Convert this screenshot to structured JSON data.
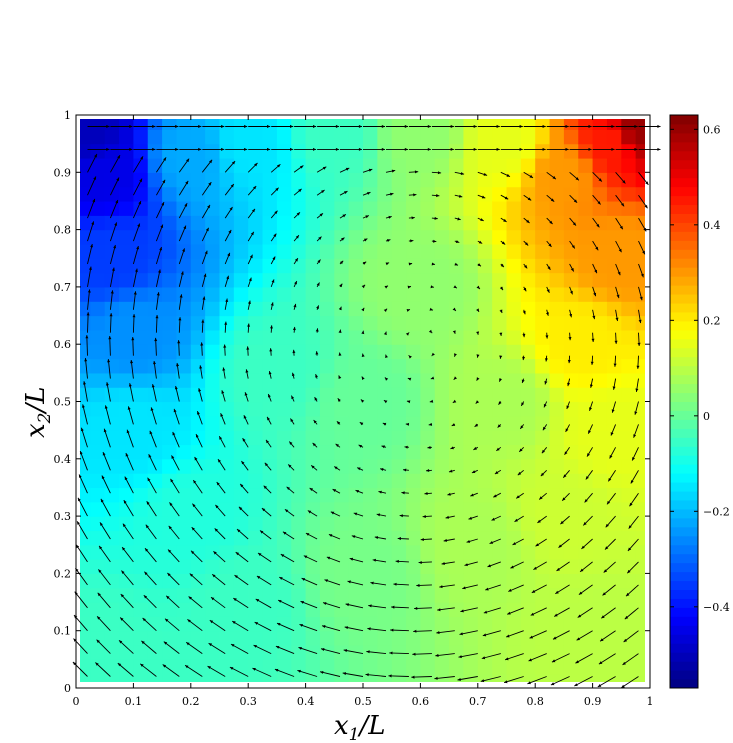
{
  "chart_data": {
    "type": "heatmap",
    "subtype": "contour-with-quiver",
    "title": "",
    "x_axis": {
      "label_base": "x",
      "label_sub": "1",
      "label_tail": "/L",
      "range": [
        0,
        1
      ],
      "ticks": [
        "0",
        "0.1",
        "0.2",
        "0.3",
        "0.4",
        "0.5",
        "0.6",
        "0.7",
        "0.8",
        "0.9",
        "1"
      ]
    },
    "y_axis": {
      "label_base": "x",
      "label_sub": "2",
      "label_tail": "/L",
      "range": [
        0,
        1
      ],
      "ticks": [
        "0",
        "0.1",
        "0.2",
        "0.3",
        "0.4",
        "0.5",
        "0.6",
        "0.7",
        "0.8",
        "0.9",
        "1"
      ]
    },
    "colorbar": {
      "colormap": "jet",
      "range": [
        -0.57,
        0.63
      ],
      "ticks": [
        {
          "value": 0.6,
          "label": "0.6"
        },
        {
          "value": 0.4,
          "label": "0.4"
        },
        {
          "value": 0.2,
          "label": "0.2"
        },
        {
          "value": 0,
          "label": "0"
        },
        {
          "value": -0.2,
          "label": "−0.2"
        },
        {
          "value": -0.4,
          "label": "−0.4"
        }
      ]
    },
    "field_samples": [
      {
        "x": 0.02,
        "y": 0.97,
        "v": -0.5
      },
      {
        "x": 0.05,
        "y": 0.9,
        "v": -0.45
      },
      {
        "x": 0.06,
        "y": 0.75,
        "v": -0.35
      },
      {
        "x": 0.1,
        "y": 0.62,
        "v": -0.25
      },
      {
        "x": 0.2,
        "y": 0.93,
        "v": -0.22
      },
      {
        "x": 0.3,
        "y": 0.95,
        "v": -0.15
      },
      {
        "x": 0.45,
        "y": 0.97,
        "v": -0.05
      },
      {
        "x": 0.6,
        "y": 0.97,
        "v": 0.05
      },
      {
        "x": 0.75,
        "y": 0.95,
        "v": 0.15
      },
      {
        "x": 0.85,
        "y": 0.9,
        "v": 0.3
      },
      {
        "x": 0.93,
        "y": 0.95,
        "v": 0.45
      },
      {
        "x": 0.98,
        "y": 0.98,
        "v": 0.6
      },
      {
        "x": 0.95,
        "y": 0.75,
        "v": 0.3
      },
      {
        "x": 0.88,
        "y": 0.6,
        "v": 0.2
      },
      {
        "x": 0.93,
        "y": 0.45,
        "v": 0.15
      },
      {
        "x": 0.85,
        "y": 0.3,
        "v": 0.12
      },
      {
        "x": 0.9,
        "y": 0.1,
        "v": 0.1
      },
      {
        "x": 0.5,
        "y": 0.5,
        "v": 0.0
      },
      {
        "x": 0.35,
        "y": 0.55,
        "v": -0.05
      },
      {
        "x": 0.1,
        "y": 0.45,
        "v": -0.15
      },
      {
        "x": 0.2,
        "y": 0.3,
        "v": -0.08
      },
      {
        "x": 0.3,
        "y": 0.15,
        "v": -0.05
      },
      {
        "x": 0.5,
        "y": 0.2,
        "v": 0.02
      },
      {
        "x": 0.7,
        "y": 0.25,
        "v": 0.08
      },
      {
        "x": 0.05,
        "y": 0.05,
        "v": -0.05
      },
      {
        "x": 0.6,
        "y": 0.7,
        "v": 0.05
      },
      {
        "x": 0.75,
        "y": 0.5,
        "v": 0.08
      }
    ],
    "vector_field": {
      "pattern": "lid-driven cavity vortex",
      "vortex_center": [
        0.6,
        0.6
      ],
      "lid_velocity_direction": "+x",
      "grid_spacing": 0.04
    },
    "grid": false,
    "legend": "colorbar-right"
  }
}
